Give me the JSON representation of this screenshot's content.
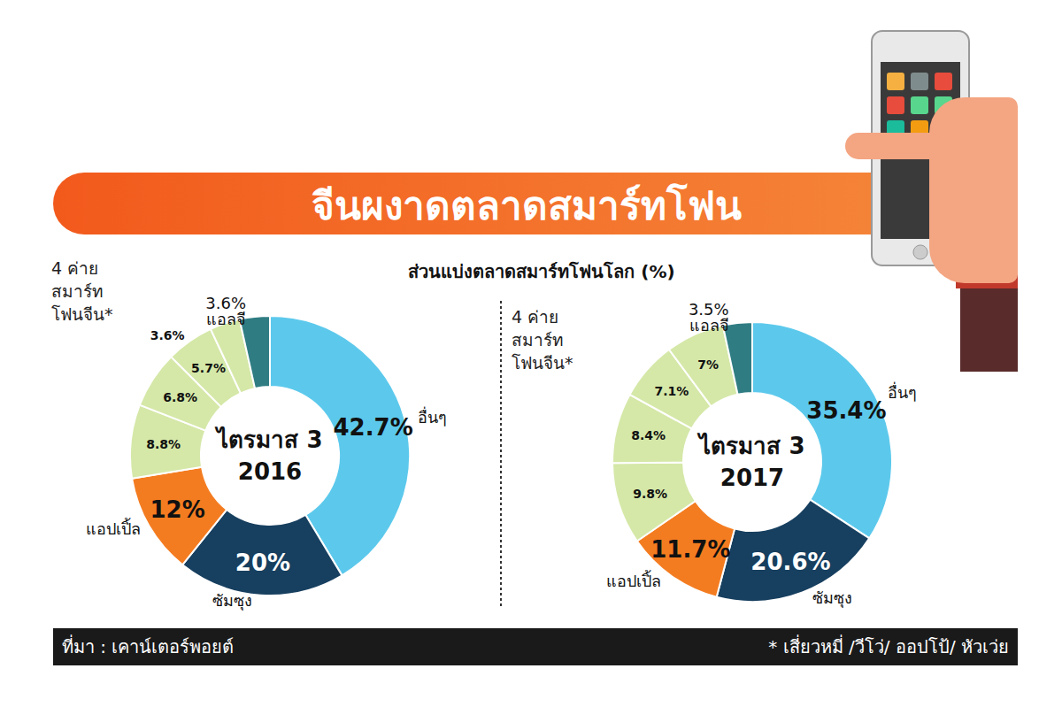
{
  "title": "จีนผงาดตลาดสมาร์ทโฟน",
  "subtitle": "ส่วนแบ่งตลาดสมาร์ทโฟนโลก (%)",
  "source": "ที่มา : เคาน์เตอร์พอยต์",
  "footnote": "* เสี่ยวหมี่ /วีโว่/ ออปโป้/ หัวเว่ย",
  "chart_data": [
    {
      "type": "pie",
      "title": "ไตรมาส 3\n2016",
      "annotation": "4 ค่าย\nสมาร์ท\nโฟนจีน*",
      "categories": [
        "อื่นๆ",
        "ซัมซุง",
        "แอปเปิ้ล",
        null,
        null,
        null,
        null,
        "แอลจี"
      ],
      "values": [
        42.7,
        20,
        12,
        8.8,
        6.8,
        5.7,
        3.6,
        3.6
      ],
      "value_labels": [
        "42.7%",
        "20%",
        "12%",
        "8.8%",
        "6.8%",
        "5.7%",
        "3.6%",
        "3.6%"
      ],
      "colors": [
        "#5cc9ec",
        "#173f5f",
        "#f47c20",
        "#d5e8a8",
        "#d5e8a8",
        "#d5e8a8",
        "#d5e8a8",
        "#2f7d83"
      ],
      "data_labels": true
    },
    {
      "type": "pie",
      "title": "ไตรมาส 3\n2017",
      "annotation": "4 ค่าย\nสมาร์ท\nโฟนจีน*",
      "categories": [
        "อื่นๆ",
        "ซัมซุง",
        "แอปเปิ้ล",
        null,
        null,
        null,
        null,
        "แอลจี"
      ],
      "values": [
        35.4,
        20.6,
        11.7,
        9.8,
        8.4,
        7.1,
        7,
        3.5
      ],
      "value_labels": [
        "35.4%",
        "20.6%",
        "11.7%",
        "9.8%",
        "8.4%",
        "7.1%",
        "7%",
        "3.5%"
      ],
      "colors": [
        "#5cc9ec",
        "#173f5f",
        "#f47c20",
        "#d5e8a8",
        "#d5e8a8",
        "#d5e8a8",
        "#d5e8a8",
        "#2f7d83"
      ],
      "data_labels": true
    }
  ]
}
